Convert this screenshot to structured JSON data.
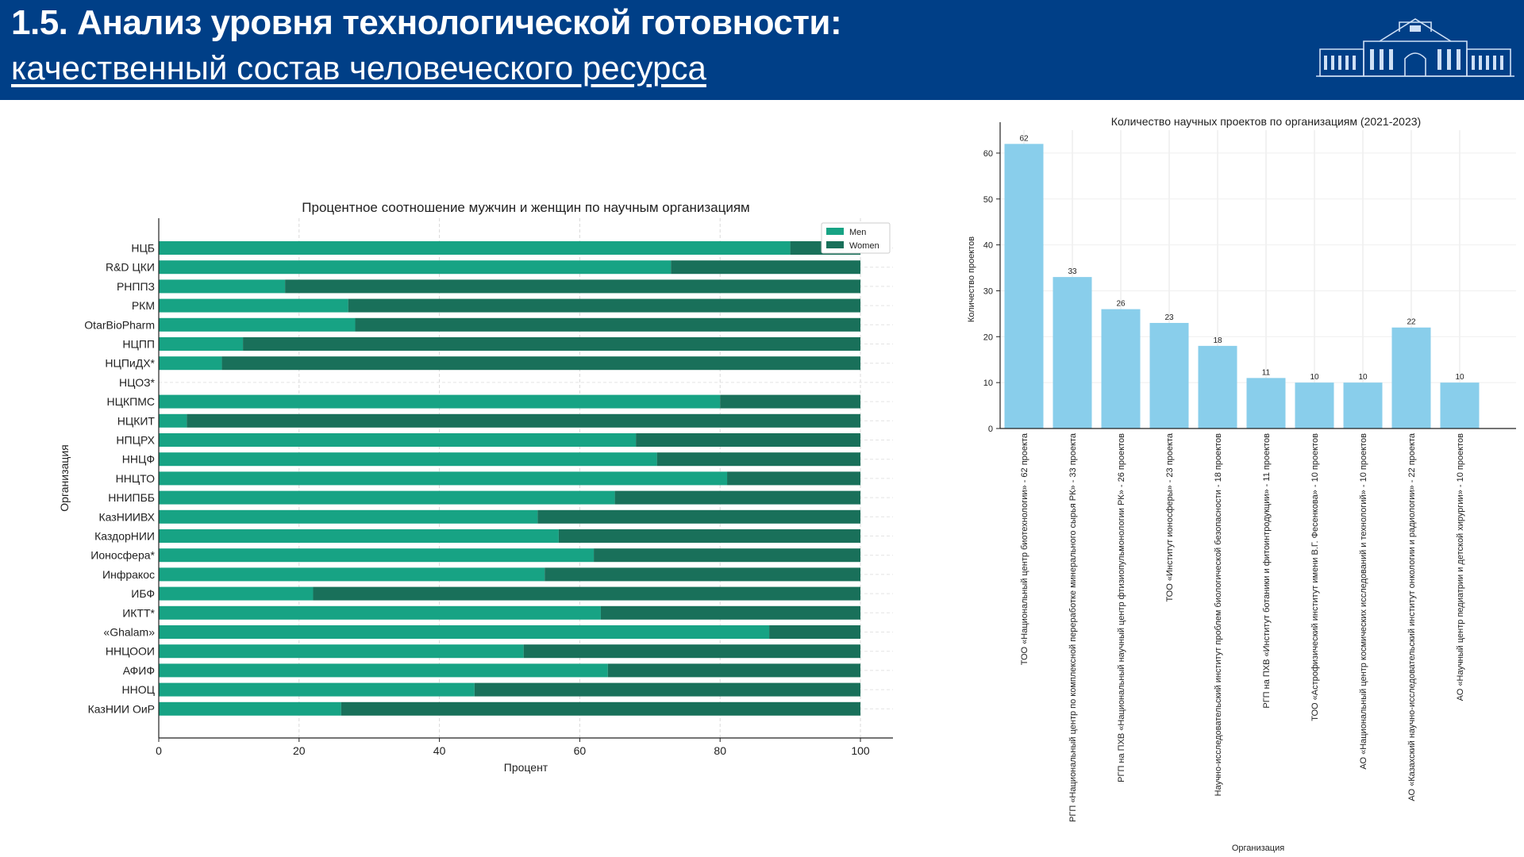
{
  "header": {
    "title": "1.5. Анализ уровня технологической готовности:",
    "subtitle": "качественный состав человеческого ресурса"
  },
  "colors": {
    "header_bg": "#003f87",
    "men": "#17a384",
    "women": "#19705a",
    "bar_blue": "#89ceeb"
  },
  "chart_data": [
    {
      "type": "bar",
      "orientation": "horizontal",
      "stacked": true,
      "title": "Процентное соотношение мужчин и женщин по научным организациям",
      "xlabel": "Процент",
      "ylabel": "Организация",
      "xlim": [
        0,
        100
      ],
      "xticks": [
        "0",
        "20",
        "40",
        "60",
        "80",
        "100"
      ],
      "legend": "top-right",
      "grid": true,
      "categories": [
        "НЦБ",
        "R&D ЦКИ",
        "РНППЗ",
        "РКМ",
        "OtarBioPharm",
        "НЦПП",
        "НЦПиДХ*",
        "НЦОЗ*",
        "НЦКПМС",
        "НЦКИТ",
        "НПЦРХ",
        "ННЦФ",
        "ННЦТО",
        "ННИПББ",
        "КазНИИВХ",
        "КаздорНИИ",
        "Ионосфера*",
        "Инфракос",
        "ИБФ",
        "ИКТТ*",
        "«Ghalam»",
        "ННЦООИ",
        "АФИФ",
        "ННОЦ",
        "КазНИИ ОиР"
      ],
      "series": [
        {
          "name": "Men",
          "values": [
            90,
            73,
            18,
            27,
            28,
            12,
            9,
            0,
            80,
            4,
            68,
            71,
            81,
            65,
            54,
            57,
            62,
            55,
            22,
            63,
            87,
            52,
            64,
            45,
            26
          ]
        },
        {
          "name": "Women",
          "values": [
            10,
            27,
            82,
            73,
            72,
            88,
            91,
            0,
            20,
            96,
            32,
            29,
            19,
            35,
            46,
            43,
            38,
            45,
            78,
            37,
            13,
            48,
            36,
            55,
            74
          ]
        }
      ]
    },
    {
      "type": "bar",
      "title": "Количество научных проектов по организациям (2021-2023)",
      "xlabel": "Организация",
      "ylabel": "Количество проектов",
      "ylim": [
        0,
        65
      ],
      "yticks": [
        "0",
        "10",
        "20",
        "30",
        "40",
        "50",
        "60"
      ],
      "grid": true,
      "categories": [
        "ТОО «Национальный центр биотехнологии» - 62 проекта",
        "РГП «Национальный центр по комплексной переработке минерального сырья РК» - 33 проекта",
        "РГП на ПХВ «Национальный научный центр фтизиопульмонологии РК» - 26 проектов",
        "ТОО «Институт ионосферы» - 23 проекта",
        "Научно-исследовательский институт проблем биологической безопасности - 18 проектов",
        "РГП на ПХВ «Институт ботаники и фитоинтродукции» - 11 проектов",
        "ТОО «Астрофизический институт имени В.Г. Фесенкова» - 10 проектов",
        "АО «Национальный центр космических исследований и технологий» - 10 проектов",
        "АО «Казахский научно-исследовательский институт онкологии и радиологии» - 22 проекта",
        "АО «Научный центр педиатрии и детской хирургии» - 10 проектов"
      ],
      "values": [
        62,
        33,
        26,
        23,
        18,
        11,
        10,
        10,
        22,
        10
      ],
      "data_labels": [
        "62",
        "33",
        "26",
        "23",
        "18",
        "11",
        "10",
        "10",
        "22",
        "10"
      ]
    }
  ]
}
